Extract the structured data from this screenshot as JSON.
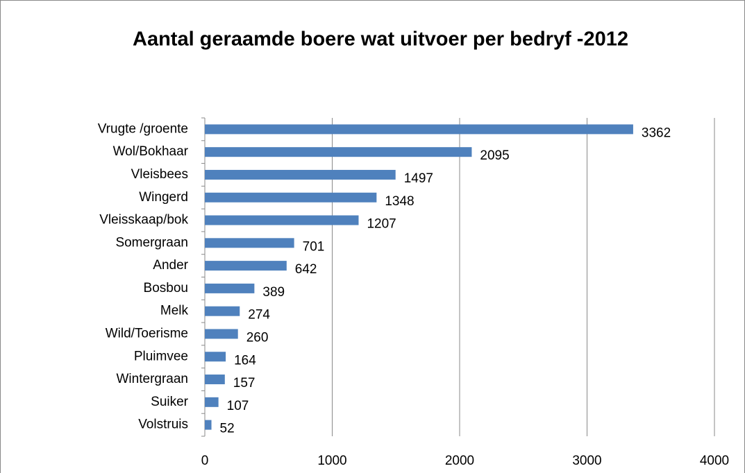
{
  "chart_data": {
    "type": "bar",
    "orientation": "horizontal",
    "title": "Aantal geraamde boere wat uitvoer per bedryf -2012",
    "categories": [
      "Vrugte /groente",
      "Wol/Bokhaar",
      "Vleisbees",
      "Wingerd",
      "Vleisskaap/bok",
      "Somergraan",
      "Ander",
      "Bosbou",
      "Melk",
      "Wild/Toerisme",
      "Pluimvee",
      "Wintergraan",
      "Suiker",
      "Volstruis"
    ],
    "values": [
      3362,
      2095,
      1497,
      1348,
      1207,
      701,
      642,
      389,
      274,
      260,
      164,
      157,
      107,
      52
    ],
    "color": "#4f81bd",
    "xlim": [
      0,
      4000
    ],
    "xticks": [
      0,
      1000,
      2000,
      3000,
      4000
    ],
    "grid": true
  }
}
